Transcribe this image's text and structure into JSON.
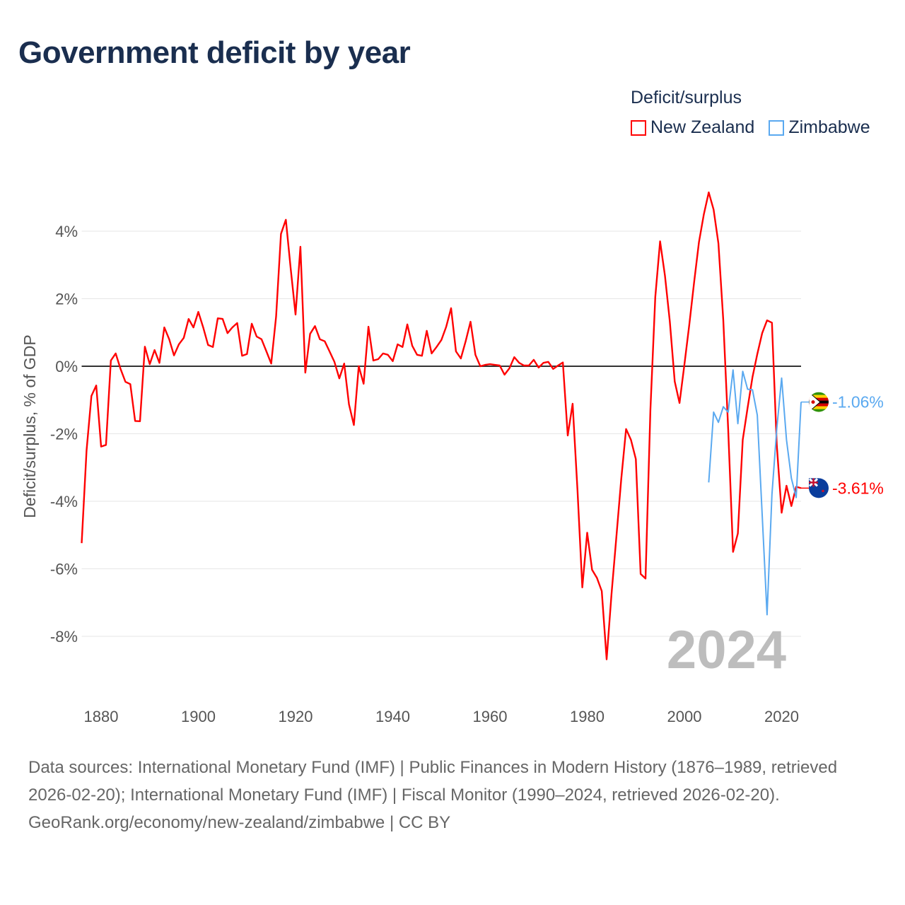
{
  "title": "Government deficit by year",
  "legend": {
    "title": "Deficit/surplus",
    "items": [
      {
        "label": "New Zealand",
        "color": "#ff0000"
      },
      {
        "label": "Zimbabwe",
        "color": "#5aa9f0"
      }
    ]
  },
  "highlight_year": "2024",
  "footer": {
    "sources": "Data sources: International Monetary Fund (IMF) | Public Finances in Modern History (1876–1989, retrieved 2026-02-20); International Monetary Fund (IMF) | Fiscal Monitor (1990–2024, retrieved 2026-02-20).",
    "attribution": "GeoRank.org/economy/new-zealand/zimbabwe | CC BY"
  },
  "chart_data": {
    "type": "line",
    "title": "Government deficit by year",
    "xlabel": "",
    "ylabel": "Deficit/surplus, % of GDP",
    "xlim": [
      1876,
      2024
    ],
    "ylim": [
      -9.5,
      5.5
    ],
    "x_ticks": [
      1880,
      1900,
      1920,
      1940,
      1960,
      1980,
      2000,
      2020
    ],
    "y_ticks": [
      4,
      2,
      0,
      -2,
      -4,
      -6,
      -8
    ],
    "y_tick_labels": [
      "4%",
      "2%",
      "0%",
      "-2%",
      "-4%",
      "-6%",
      "-8%"
    ],
    "grid": true,
    "legend_position": "top-right",
    "series": [
      {
        "name": "New Zealand",
        "color": "#ff0000",
        "start_year": 1876,
        "end_label": "-3.61%",
        "values": [
          -5.24,
          -2.5,
          -0.88,
          -0.57,
          -2.38,
          -2.33,
          0.17,
          0.38,
          -0.08,
          -0.46,
          -0.53,
          -1.62,
          -1.63,
          0.58,
          0.06,
          0.48,
          0.1,
          1.15,
          0.8,
          0.32,
          0.65,
          0.84,
          1.4,
          1.15,
          1.61,
          1.15,
          0.63,
          0.57,
          1.42,
          1.4,
          0.98,
          1.15,
          1.28,
          0.31,
          0.36,
          1.26,
          0.88,
          0.8,
          0.44,
          0.08,
          1.47,
          3.92,
          4.34,
          2.9,
          1.53,
          3.54,
          -0.19,
          0.96,
          1.19,
          0.8,
          0.74,
          0.44,
          0.13,
          -0.36,
          0.08,
          -1.13,
          -1.74,
          0,
          -0.52,
          1.17,
          0.17,
          0.21,
          0.38,
          0.34,
          0.15,
          0.65,
          0.57,
          1.24,
          0.61,
          0.34,
          0.31,
          1.05,
          0.38,
          0.57,
          0.78,
          1.17,
          1.72,
          0.44,
          0.23,
          0.74,
          1.32,
          0.34,
          0,
          0.04,
          0.06,
          0.04,
          0.02,
          -0.25,
          -0.06,
          0.27,
          0.1,
          0.02,
          0.02,
          0.19,
          -0.04,
          0.1,
          0.13,
          -0.08,
          0.02,
          0.11,
          -2.05,
          -1.11,
          -3.68,
          -6.55,
          -4.93,
          -6.03,
          -6.27,
          -6.66,
          -8.68,
          -6.75,
          -5.05,
          -3.36,
          -1.86,
          -2.18,
          -2.75,
          -6.15,
          -6.29,
          -1.3,
          2.05,
          3.7,
          2.68,
          1.32,
          -0.45,
          -1.09,
          0.05,
          1.23,
          2.5,
          3.68,
          4.5,
          5.15,
          4.64,
          3.64,
          1.36,
          -1.86,
          -5.5,
          -4.95,
          -2.18,
          -1.23,
          -0.32,
          0.36,
          0.98,
          1.36,
          1.29,
          -2.32,
          -4.34,
          -3.54,
          -4.14,
          -3.57,
          -3.61
        ]
      },
      {
        "name": "Zimbabwe",
        "color": "#5aa9f0",
        "start_year": 2005,
        "end_label": "-1.06%",
        "values": [
          -3.44,
          -1.36,
          -1.66,
          -1.2,
          -1.36,
          -0.11,
          -1.7,
          -0.15,
          -0.68,
          -0.7,
          -1.45,
          -4.4,
          -7.36,
          -3.8,
          -1.86,
          -0.35,
          -2.18,
          -3.32,
          -3.89,
          -1.06
        ]
      }
    ]
  }
}
